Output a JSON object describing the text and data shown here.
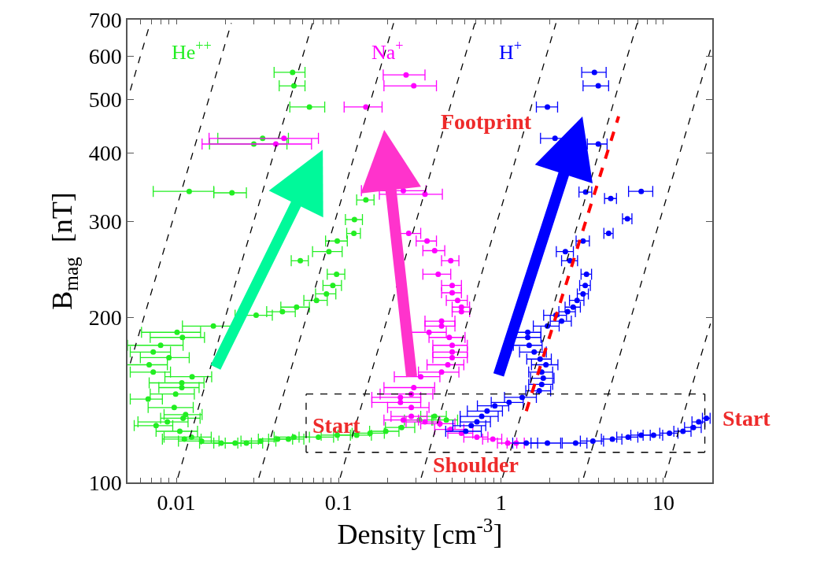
{
  "chart_data": {
    "type": "scatter",
    "xlabel": "Density [cm$^{-3}$]",
    "ylabel": "B$_{mag}$  [nT]",
    "log": "xy",
    "xlim": [
      0.005,
      20
    ],
    "ylim": [
      100,
      700
    ],
    "xticks": [
      {
        "value": 0.006,
        "label": null
      },
      {
        "value": 0.007,
        "label": null
      },
      {
        "value": 0.008,
        "label": null
      },
      {
        "value": 0.009,
        "label": null
      },
      {
        "value": 0.01,
        "label": "0.01"
      },
      {
        "value": 0.02,
        "label": null
      },
      {
        "value": 0.03,
        "label": null
      },
      {
        "value": 0.04,
        "label": null
      },
      {
        "value": 0.05,
        "label": null
      },
      {
        "value": 0.06,
        "label": null
      },
      {
        "value": 0.07,
        "label": null
      },
      {
        "value": 0.08,
        "label": null
      },
      {
        "value": 0.09,
        "label": null
      },
      0.1,
      {
        "value": 0.2,
        "label": null
      },
      {
        "value": 0.3,
        "label": null
      },
      {
        "value": 0.4,
        "label": null
      },
      {
        "value": 0.5,
        "label": null
      },
      {
        "value": 0.6,
        "label": null
      },
      {
        "value": 0.7,
        "label": null
      },
      {
        "value": 0.8,
        "label": null
      },
      {
        "value": 0.9,
        "label": null
      },
      1,
      {
        "value": 2,
        "label": null
      },
      {
        "value": 3,
        "label": null
      },
      {
        "value": 4,
        "label": null
      },
      {
        "value": 5,
        "label": null
      },
      {
        "value": 6,
        "label": null
      },
      {
        "value": 7,
        "label": null
      },
      {
        "value": 8,
        "label": null
      },
      {
        "value": 9,
        "label": null
      },
      10
    ],
    "yticks": [
      100,
      200,
      300,
      400,
      500,
      600,
      700
    ],
    "annotations": [
      "Footprint",
      {
        "text": "Start",
        "x": 0.097,
        "y": 127
      },
      "Shoulder",
      {
        "text": "Start",
        "x": 18.4,
        "y": 131
      }
    ],
    "series": [
      {
        "name": "He$^{++}$",
        "marker": "circle",
        "color": "#22ee22",
        "x": [
          0.052,
          0.053,
          0.066,
          0.034,
          0.03,
          0.012,
          0.022,
          0.147,
          0.125,
          0.124,
          0.098,
          0.087,
          0.058,
          0.097,
          0.092,
          0.084,
          0.073,
          0.055,
          0.045,
          0.031,
          0.0169,
          0.0101,
          0.0109,
          0.008,
          0.0072,
          0.009,
          0.0068,
          0.0072,
          0.0125,
          0.0108,
          0.0108,
          0.0099,
          0.0067,
          0.0097,
          0.0114,
          0.011,
          0.0088,
          0.0075,
          0.0105,
          0.0112,
          0.0124,
          0.0143,
          0.0189,
          0.023,
          0.027,
          0.033,
          0.042,
          0.049,
          0.053,
          0.075,
          0.098,
          0.129,
          0.156,
          0.195,
          0.244,
          0.314,
          0.39,
          0.46
        ],
        "values": [
          561,
          530,
          485,
          425,
          415,
          340,
          338,
          328,
          302,
          285,
          276,
          264,
          254,
          240,
          229,
          221,
          215,
          209,
          205,
          202,
          193,
          188,
          184,
          178,
          173,
          169,
          164,
          159,
          156,
          152,
          149,
          145,
          142,
          137,
          133,
          131,
          129,
          127,
          124,
          120,
          121,
          119,
          118,
          118,
          118,
          119,
          120,
          120,
          121,
          121,
          122,
          122,
          123,
          124,
          126,
          130,
          132,
          130
        ],
        "xerrors": [
          [
            0.04,
            0.062
          ],
          [
            0.043,
            0.062
          ],
          [
            0.05,
            0.082
          ],
          [
            0.018,
            0.049
          ],
          [
            0.016,
            0.048
          ],
          [
            0.0072,
            0.017
          ],
          [
            0.017,
            0.027
          ],
          0.018,
          0.015,
          0.012,
          0.015,
          0.018,
          0.007,
          0.012,
          0.012,
          0.012,
          0.012,
          0.011,
          0.009,
          0.008,
          0.006,
          0.004,
          0.004,
          0.003,
          0.002,
          0.003,
          0.002,
          0.002,
          0.004,
          0.004,
          0.003,
          0.003,
          0.0015,
          0.003,
          0.003,
          0.003,
          0.003,
          0.002,
          0.003,
          0.003,
          0.004,
          0.004,
          0.005,
          0.006,
          0.007,
          0.008,
          0.01,
          0.012,
          0.013,
          0.018,
          0.02,
          0.03,
          0.035,
          0.04,
          0.05,
          0.06,
          0.07,
          0.08
        ]
      },
      {
        "name": "Na$^{+}$",
        "marker": "circle",
        "color": "#ff00ff",
        "x": [
          0.046,
          0.041,
          0.26,
          0.29,
          0.147,
          0.25,
          0.34,
          0.27,
          0.35,
          0.39,
          0.49,
          0.41,
          0.5,
          0.5,
          0.54,
          0.57,
          0.57,
          0.43,
          0.43,
          0.36,
          0.48,
          0.5,
          0.5,
          0.5,
          0.47,
          0.43,
          0.32,
          0.29,
          0.28,
          0.24,
          0.24,
          0.28,
          0.25,
          0.28,
          0.34,
          0.42,
          0.49,
          0.57,
          0.71,
          0.89,
          1.1,
          1.24
        ],
        "values": [
          425,
          415,
          555,
          530,
          485,
          341,
          336,
          285,
          276,
          265,
          254,
          240,
          229,
          222,
          215,
          209,
          205,
          197,
          193,
          188,
          184,
          178,
          173,
          169,
          164,
          159,
          156,
          149,
          145,
          143,
          140,
          137,
          130,
          132,
          129,
          128,
          125,
          123,
          121,
          120,
          118,
          118
        ],
        "xerrors": [
          [
            0.0159,
            0.075
          ],
          [
            0.0144,
            0.068
          ],
          [
            0.188,
            0.34
          ],
          [
            0.19,
            0.4
          ],
          [
            0.108,
            0.185
          ],
          [
            0.138,
            0.345
          ],
          [
            0.178,
            0.435
          ],
          0.05,
          0.05,
          0.06,
          0.06,
          0.08,
          0.07,
          0.07,
          0.08,
          0.07,
          0.07,
          0.09,
          0.09,
          0.1,
          0.12,
          0.12,
          0.12,
          0.12,
          0.12,
          0.12,
          0.1,
          0.1,
          0.1,
          0.08,
          0.08,
          0.08,
          0.06,
          0.07,
          0.08,
          0.1,
          0.1,
          0.1,
          0.12,
          0.12,
          0.15,
          0.15
        ]
      },
      {
        "name": "H$^{+}$",
        "marker": "circle",
        "color": "#0000ff",
        "x": [
          3.76,
          3.97,
          1.93,
          2.15,
          3.97,
          3.32,
          4.74,
          7.3,
          6.0,
          4.6,
          3.2,
          2.49,
          2.66,
          3.36,
          3.3,
          3.2,
          2.94,
          2.78,
          2.57,
          2.18,
          2.36,
          1.93,
          1.46,
          1.46,
          1.49,
          1.6,
          1.74,
          1.89,
          1.78,
          1.82,
          1.78,
          1.72,
          1.35,
          1.12,
          0.915,
          0.82,
          0.76,
          0.71,
          0.655,
          0.606,
          1.43,
          1.93,
          2.88,
          3.68,
          4.85,
          6.06,
          7.3,
          8.7,
          10.9,
          13.2,
          15.3,
          16.5,
          18.4
        ],
        "values": [
          561,
          530,
          485,
          425,
          415,
          339,
          330,
          340,
          303,
          285,
          276,
          264,
          254,
          240,
          229,
          221,
          215,
          209,
          205,
          202,
          197,
          193,
          188,
          184,
          178,
          173,
          168,
          164,
          159,
          155,
          151,
          147,
          143,
          140,
          138,
          135,
          132,
          129,
          127,
          124,
          118,
          118,
          118,
          119,
          120,
          121,
          122,
          122,
          123,
          124,
          126,
          129,
          131
        ],
        "xerrors": [
          [
            3.14,
            4.44
          ],
          [
            3.2,
            4.6
          ],
          [
            1.65,
            2.23
          ],
          0.4,
          [
            3.4,
            4.5
          ],
          0.3,
          0.4,
          [
            6.1,
            8.6
          ],
          0.4,
          0.3,
          0.3,
          0.3,
          0.3,
          0.25,
          0.25,
          0.25,
          0.3,
          0.3,
          0.3,
          0.35,
          0.35,
          0.35,
          0.3,
          0.3,
          0.3,
          0.3,
          0.3,
          0.35,
          0.3,
          0.3,
          0.3,
          0.3,
          0.3,
          0.25,
          0.2,
          0.2,
          0.2,
          0.15,
          0.15,
          0.15,
          0.25,
          0.4,
          0.5,
          0.6,
          0.7,
          0.9,
          1.0,
          1.2,
          1.4,
          1.6,
          1.8,
          1.5,
          1.0
        ]
      },
      {
        "type": "line",
        "color": "#ff0000",
        "line_style": "dashed",
        "x": [
          1.43,
          5.3
        ],
        "values": [
          135,
          466
        ]
      },
      {
        "type": "line",
        "color": "#000000",
        "line_style": "dashed",
        "x": [
          0.063,
          18,
          null,
          18,
          18,
          null,
          18,
          0.063,
          null,
          0.063,
          0.063
        ],
        "values": [
          145,
          145,
          null,
          145,
          113.5,
          null,
          113.5,
          113.5,
          null,
          113.5,
          145
        ]
      },
      {
        "type": "line",
        "color": "#000000",
        "line_style": "dashed",
        "x": [
          0.0052,
          0.0069
        ],
        "values": [
          520,
          690
        ]
      },
      {
        "type": "line",
        "color": "#000000",
        "line_style": "dashed",
        "x": [
          0.0052,
          0.0218
        ],
        "values": [
          165,
          690
        ]
      },
      {
        "type": "line",
        "color": "#000000",
        "line_style": "dashed",
        "x": [
          0.0102,
          0.069
        ],
        "values": [
          102,
          690
        ]
      },
      {
        "type": "line",
        "color": "#000000",
        "line_style": "dashed",
        "x": [
          0.0322,
          0.218
        ],
        "values": [
          102,
          690
        ]
      },
      {
        "type": "line",
        "color": "#000000",
        "line_style": "dashed",
        "x": [
          0.102,
          0.69
        ],
        "values": [
          102,
          690
        ]
      },
      {
        "type": "line",
        "color": "#000000",
        "line_style": "dashed",
        "x": [
          0.322,
          2.18
        ],
        "values": [
          102,
          690
        ]
      },
      {
        "type": "line",
        "color": "#000000",
        "line_style": "dashed",
        "x": [
          1.02,
          6.9
        ],
        "values": [
          102,
          690
        ]
      },
      {
        "type": "line",
        "color": "#000000",
        "line_style": "dashed",
        "x": [
          3.22,
          19.5
        ],
        "values": [
          102,
          617
        ]
      },
      {
        "type": "line",
        "color": "#000000",
        "line_style": "dashed",
        "x": [
          10.2,
          19.5
        ],
        "values": [
          102,
          195
        ]
      }
    ]
  }
}
